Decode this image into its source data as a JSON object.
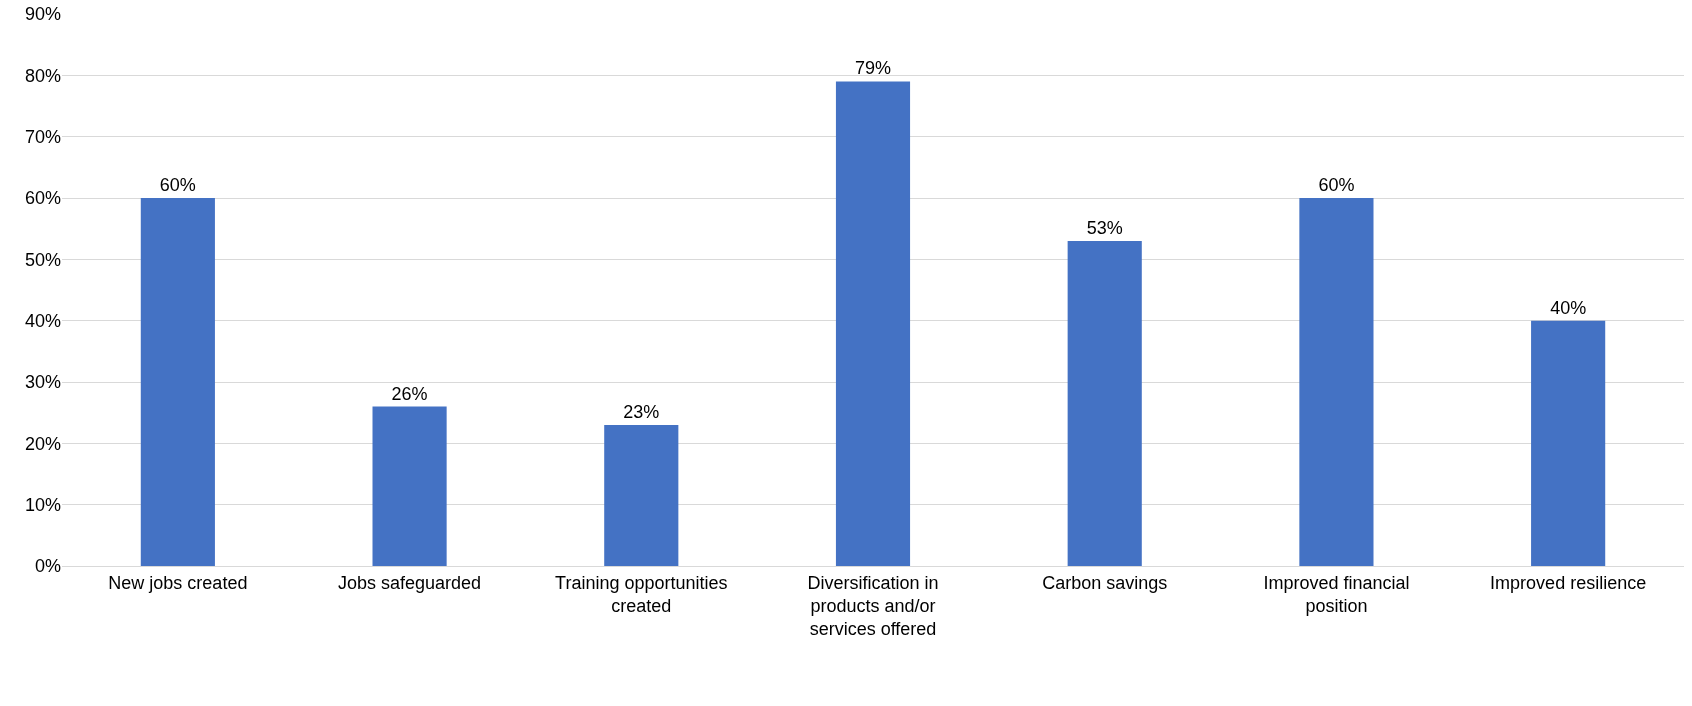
{
  "chart_data": {
    "type": "bar",
    "categories": [
      "New jobs created",
      "Jobs safeguarded",
      "Training opportunities created",
      "Diversification in products and/or services offered",
      "Carbon savings",
      "Improved financial position",
      "Improved resilience"
    ],
    "values": [
      60,
      26,
      23,
      79,
      53,
      60,
      40
    ],
    "value_labels": [
      "60%",
      "26%",
      "23%",
      "79%",
      "53%",
      "60%",
      "40%"
    ],
    "color": "#4472c4",
    "ylim": [
      0,
      90
    ],
    "yticks": [
      {
        "value": 0,
        "label": "0%"
      },
      {
        "value": 10,
        "label": "10%"
      },
      {
        "value": 20,
        "label": "20%"
      },
      {
        "value": 30,
        "label": "30%"
      },
      {
        "value": 40,
        "label": "40%"
      },
      {
        "value": 50,
        "label": "50%"
      },
      {
        "value": 60,
        "label": "60%"
      },
      {
        "value": 70,
        "label": "70%"
      },
      {
        "value": 80,
        "label": "80%"
      },
      {
        "value": 90,
        "label": "90%"
      }
    ],
    "grid": "y"
  }
}
